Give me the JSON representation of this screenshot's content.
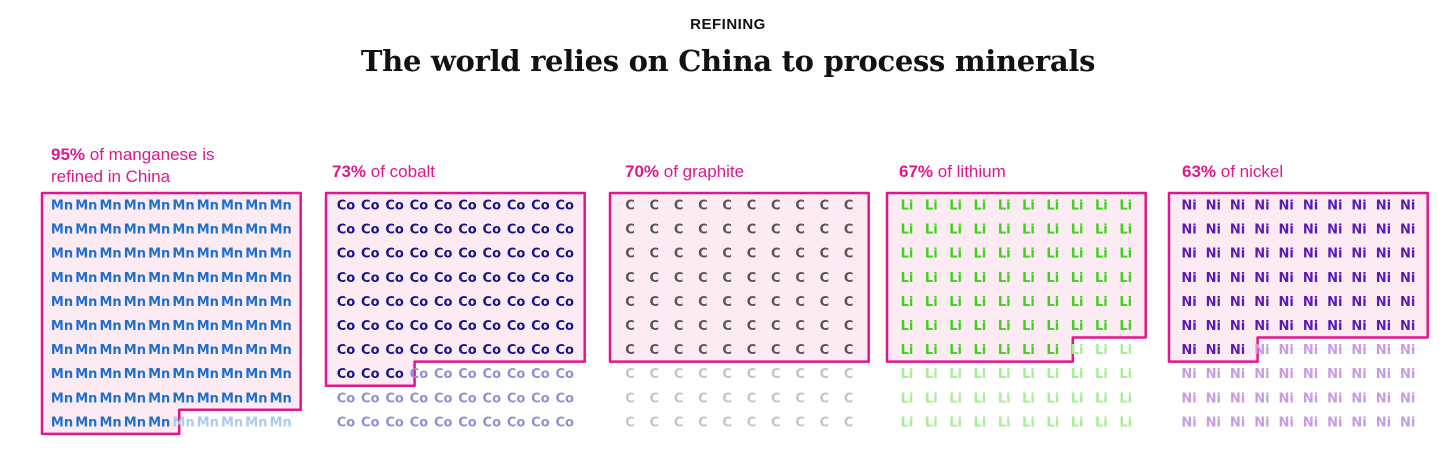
{
  "header": {
    "kicker": "REFINING",
    "title": "The world relies on China to process minerals"
  },
  "colors": {
    "highlight_border": "#e0168c",
    "highlight_fill": "#fdebf4"
  },
  "chart_data": [
    {
      "type": "waffle",
      "mineral": "manganese",
      "symbol": "Mn",
      "percent_text": "95%",
      "label_rest": " of manganese is refined in China",
      "value_percent": 95,
      "total_units": 100,
      "china_color": "#1f6fd0",
      "rest_color": "#a9cdee"
    },
    {
      "type": "waffle",
      "mineral": "cobalt",
      "symbol": "Co",
      "percent_text": "73%",
      "label_rest": " of cobalt",
      "value_percent": 73,
      "total_units": 100,
      "china_color": "#15148c",
      "rest_color": "#8f8fd3"
    },
    {
      "type": "waffle",
      "mineral": "graphite",
      "symbol": "C",
      "percent_text": "70%",
      "label_rest": " of graphite",
      "value_percent": 70,
      "total_units": 100,
      "china_color": "#555555",
      "rest_color": "#c4c4c4"
    },
    {
      "type": "waffle",
      "mineral": "lithium",
      "symbol": "Li",
      "percent_text": "67%",
      "label_rest": " of lithium",
      "value_percent": 67,
      "total_units": 100,
      "china_color": "#3fd11c",
      "rest_color": "#a6ee94"
    },
    {
      "type": "waffle",
      "mineral": "nickel",
      "symbol": "Ni",
      "percent_text": "63%",
      "label_rest": " of nickel",
      "value_percent": 63,
      "total_units": 100,
      "china_color": "#5a1bb8",
      "rest_color": "#c79be6"
    }
  ]
}
